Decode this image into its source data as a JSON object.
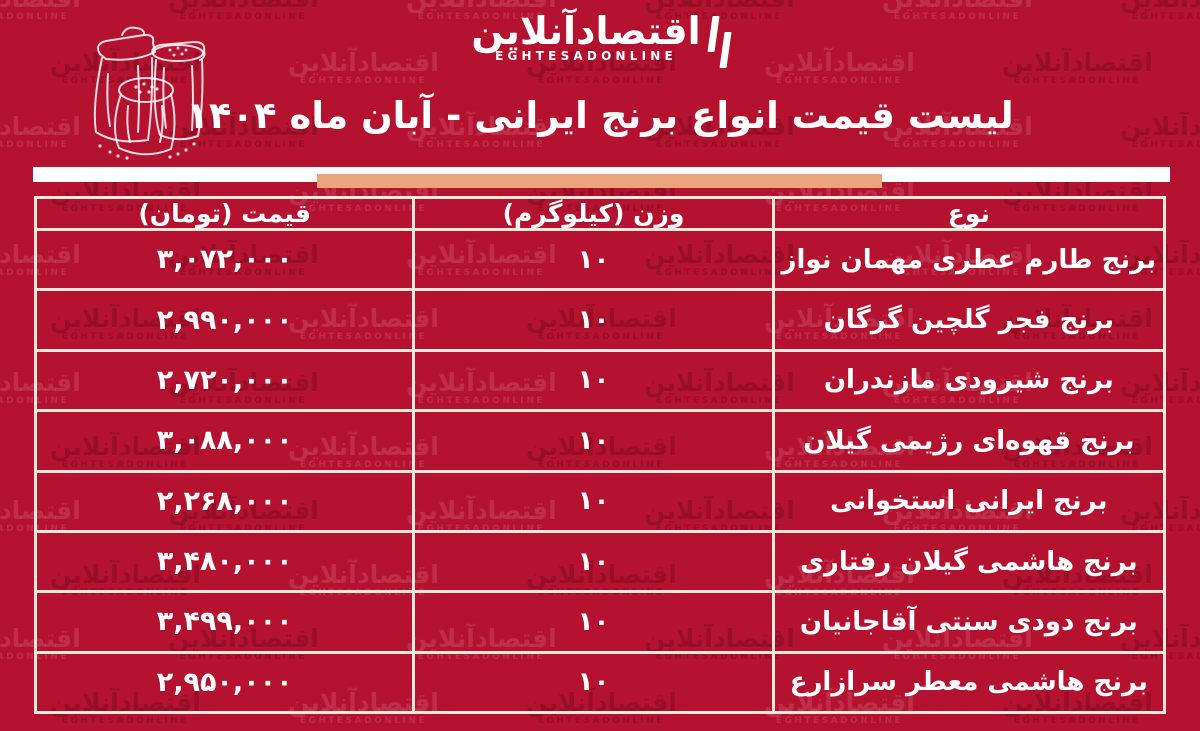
{
  "logo": {
    "fa": "اقتصادآنلاین",
    "en": "EGHTESADONLINE"
  },
  "title": "لیست قیمت انواع برنج ایرانی - آبان ماه ۱۴۰۴",
  "table": {
    "columns": {
      "type": "نوع",
      "weight": "وزن (کیلوگرم)",
      "price": "قیمت (تومان)"
    },
    "rows": [
      {
        "type": "برنج طارم عطری مهمان نواز",
        "weight": "۱۰",
        "price": "۳,۰۷۲,۰۰۰"
      },
      {
        "type": "برنج فجر گلچین گرگان",
        "weight": "۱۰",
        "price": "۲,۹۹۰,۰۰۰"
      },
      {
        "type": "برنج شیرودی مازندران",
        "weight": "۱۰",
        "price": "۲,۷۲۰,۰۰۰"
      },
      {
        "type": "برنج قهوه‌ای رژیمی گیلان",
        "weight": "۱۰",
        "price": "۳,۰۸۸,۰۰۰"
      },
      {
        "type": "برنج ایرانی استخوانی",
        "weight": "۱۰",
        "price": "۲,۲۶۸,۰۰۰"
      },
      {
        "type": "برنج هاشمی گیلان رفتاری",
        "weight": "۱۰",
        "price": "۳,۴۸۰,۰۰۰"
      },
      {
        "type": "برنج دودی سنتی آقاجانیان",
        "weight": "۱۰",
        "price": "۳,۴۹۹,۰۰۰"
      },
      {
        "type": "برنج هاشمی معطر سرازارع",
        "weight": "۱۰",
        "price": "۲,۹۵۰,۰۰۰"
      }
    ]
  },
  "chart_data": {
    "type": "table",
    "title": "لیست قیمت انواع برنج ایرانی - آبان ماه ۱۴۰۴",
    "columns": [
      "نوع",
      "وزن (کیلوگرم)",
      "قیمت (تومان)"
    ],
    "rows": [
      [
        "برنج طارم عطری مهمان نواز",
        "۱۰",
        "۳,۰۷۲,۰۰۰"
      ],
      [
        "برنج فجر گلچین گرگان",
        "۱۰",
        "۲,۹۹۰,۰۰۰"
      ],
      [
        "برنج شیرودی مازندران",
        "۱۰",
        "۲,۷۲۰,۰۰۰"
      ],
      [
        "برنج قهوه‌ای رژیمی گیلان",
        "۱۰",
        "۳,۰۸۸,۰۰۰"
      ],
      [
        "برنج ایرانی استخوانی",
        "۱۰",
        "۲,۲۶۸,۰۰۰"
      ],
      [
        "برنج هاشمی گیلان رفتاری",
        "۱۰",
        "۳,۴۸۰,۰۰۰"
      ],
      [
        "برنج دودی سنتی آقاجانیان",
        "۱۰",
        "۳,۴۹۹,۰۰۰"
      ],
      [
        "برنج هاشمی معطر سرازارع",
        "۱۰",
        "۲,۹۵۰,۰۰۰"
      ]
    ],
    "prices_toman": [
      3072000,
      2990000,
      2720000,
      3088000,
      2268000,
      3480000,
      3499000,
      2950000
    ],
    "weight_kg": 10
  },
  "colors": {
    "background": "#b5122f",
    "accent_bar": "#eca47d",
    "band": "#ffffff",
    "table_border": "#f5ead9",
    "text": "#ffffff"
  },
  "icons": {
    "top_left": "rice-sacks-illustration",
    "brand_mark": "double-bars-icon"
  }
}
